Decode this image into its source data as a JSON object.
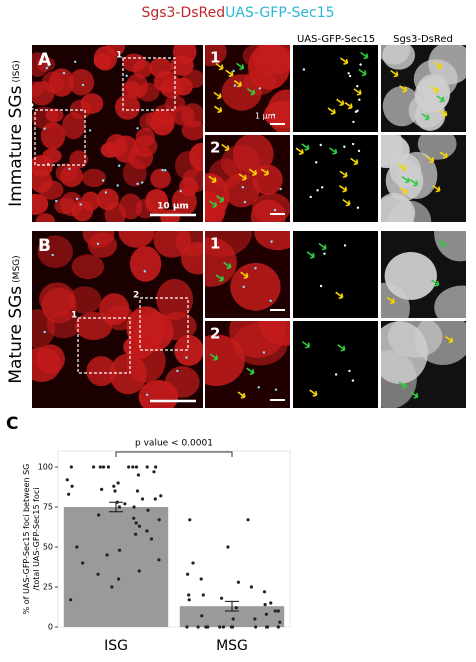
{
  "figure": {
    "title": [
      "Sgs3-DsRed",
      "UAS-GFP-Sec15"
    ],
    "column_headers": [
      "UAS-GFP-Sec15",
      "Sgs3-DsRed"
    ],
    "rows": [
      {
        "panel": "A",
        "label": "Immature SGs",
        "abbr": "(ISG)",
        "scale_bar": "10 µm",
        "inset_scale_bar": "1 µm",
        "insets": [
          "1",
          "2"
        ]
      },
      {
        "panel": "B",
        "label": "Mature SGs",
        "abbr": "(MSG)",
        "insets": [
          "1",
          "2"
        ]
      }
    ]
  },
  "chart_data": {
    "type": "bar",
    "panel": "C",
    "ylabel": [
      "% of UAS-GFP-Sec15 foci between SG",
      "/total UAS-GFP-Sec15 foci"
    ],
    "annotation": "p value < 0.0001",
    "categories": [
      "ISG",
      "MSG"
    ],
    "values": [
      75,
      13
    ],
    "errors": [
      3,
      3
    ],
    "points": [
      [
        100,
        100,
        100,
        100,
        100,
        100,
        100,
        100,
        100,
        100,
        97,
        95,
        92,
        90,
        88,
        88,
        86,
        85,
        85,
        83,
        82,
        80,
        80,
        78,
        77,
        75,
        75,
        73,
        70,
        68,
        67,
        65,
        63,
        60,
        58,
        55,
        50,
        48,
        45,
        42,
        40,
        35,
        33,
        30,
        25,
        17
      ],
      [
        67,
        67,
        50,
        40,
        33,
        30,
        28,
        25,
        22,
        20,
        20,
        18,
        17,
        15,
        14,
        12,
        10,
        10,
        8,
        7,
        5,
        5,
        3,
        0,
        0,
        0,
        0,
        0,
        0,
        0,
        0,
        0,
        0,
        0,
        0
      ]
    ],
    "color": "#9a9a9a",
    "point_color": "#222222",
    "ylim": [
      0,
      110
    ],
    "yticks": [
      0,
      25,
      50,
      75,
      100
    ]
  }
}
